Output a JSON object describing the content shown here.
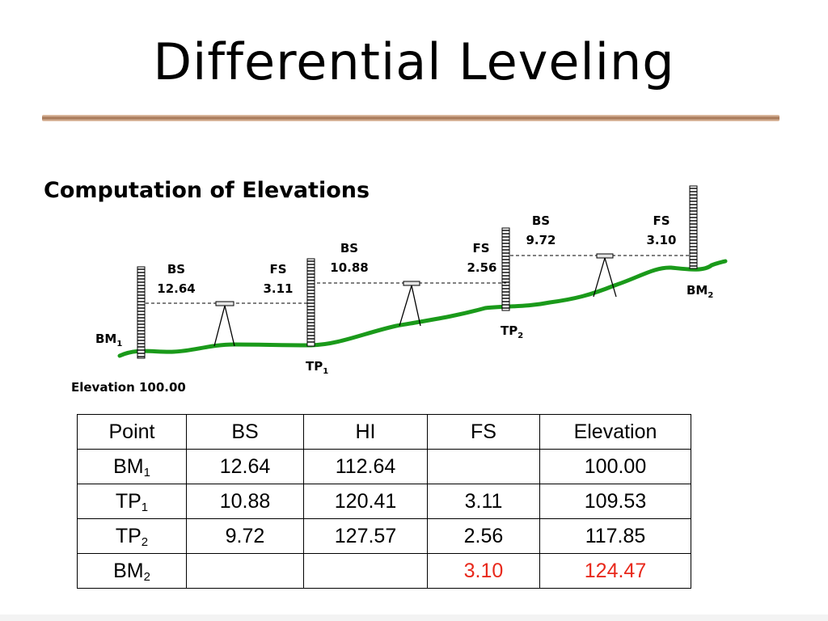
{
  "title": "Differential Leveling",
  "subtitle": "Computation of Elevations",
  "diagram": {
    "elevation_note": "Elevation 100.00",
    "points": [
      {
        "name": "BM",
        "sub": "1"
      },
      {
        "name": "TP",
        "sub": "1"
      },
      {
        "name": "TP",
        "sub": "2"
      },
      {
        "name": "BM",
        "sub": "2"
      }
    ],
    "readings": [
      {
        "type": "BS",
        "value": "12.64"
      },
      {
        "type": "FS",
        "value": "3.11"
      },
      {
        "type": "BS",
        "value": "10.88"
      },
      {
        "type": "FS",
        "value": "2.56"
      },
      {
        "type": "BS",
        "value": "9.72"
      },
      {
        "type": "FS",
        "value": "3.10"
      }
    ],
    "ground_color": "#1a9a1a"
  },
  "table": {
    "headers": [
      "Point",
      "BS",
      "HI",
      "FS",
      "Elevation"
    ],
    "rows": [
      {
        "point": "BM",
        "sub": "1",
        "bs": "12.64",
        "hi": "112.64",
        "fs": "",
        "elevation": "100.00"
      },
      {
        "point": "TP",
        "sub": "1",
        "bs": "10.88",
        "hi": "120.41",
        "fs": "3.11",
        "elevation": "109.53"
      },
      {
        "point": "TP",
        "sub": "2",
        "bs": "9.72",
        "hi": "127.57",
        "fs": "2.56",
        "elevation": "117.85"
      },
      {
        "point": "BM",
        "sub": "2",
        "bs": "",
        "hi": "",
        "fs": "3.10",
        "elevation": "124.47"
      }
    ],
    "highlight_color": "#e8291c"
  }
}
